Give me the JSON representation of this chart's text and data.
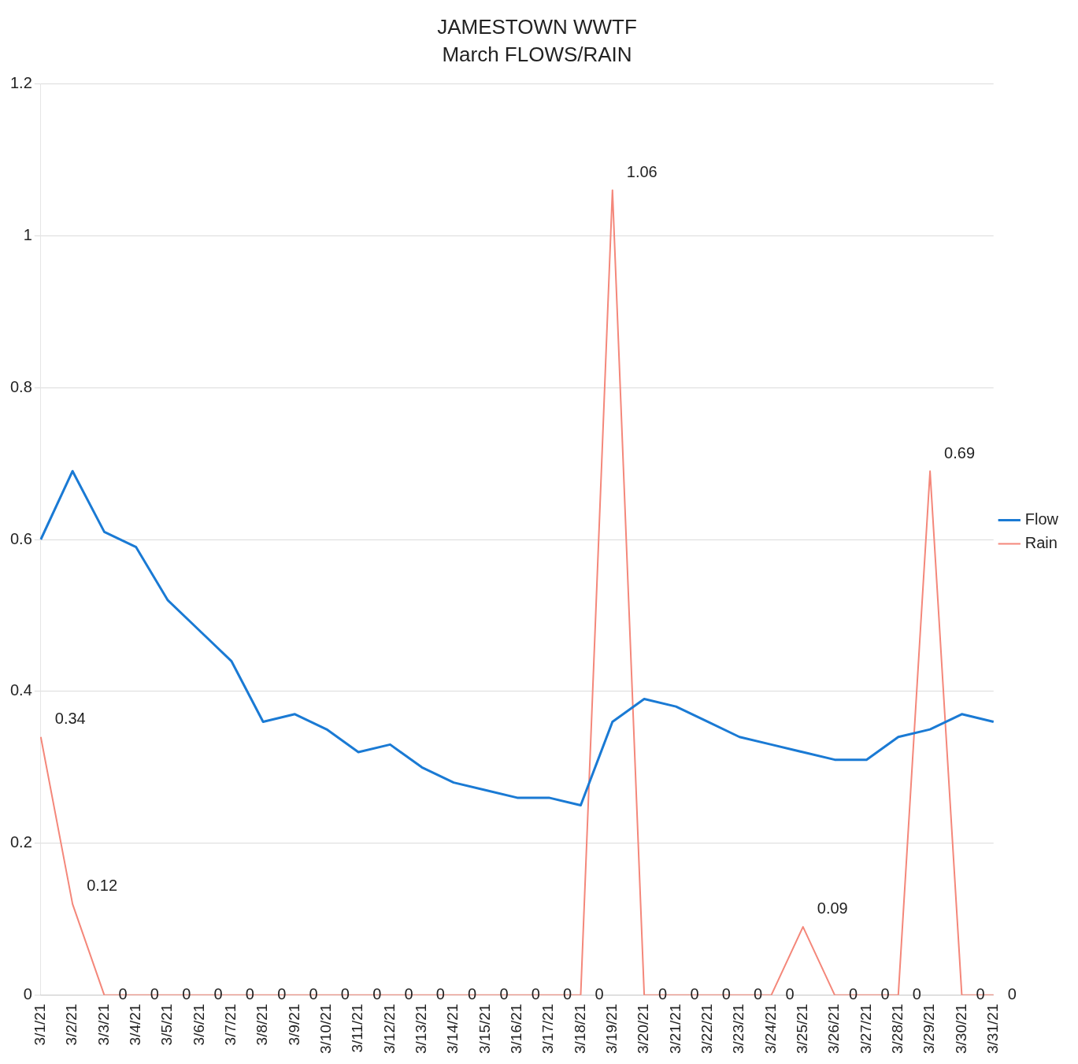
{
  "chart_data": {
    "type": "line",
    "title": "JAMESTOWN WWTF",
    "subtitle": "March FLOWS/RAIN",
    "categories": [
      "3/1/21",
      "3/2/21",
      "3/3/21",
      "3/4/21",
      "3/5/21",
      "3/6/21",
      "3/7/21",
      "3/8/21",
      "3/9/21",
      "3/10/21",
      "3/11/21",
      "3/12/21",
      "3/13/21",
      "3/14/21",
      "3/15/21",
      "3/16/21",
      "3/17/21",
      "3/18/21",
      "3/19/21",
      "3/20/21",
      "3/21/21",
      "3/22/21",
      "3/23/21",
      "3/24/21",
      "3/25/21",
      "3/26/21",
      "3/27/21",
      "3/28/21",
      "3/29/21",
      "3/30/21",
      "3/31/21"
    ],
    "series": [
      {
        "name": "Flow",
        "color": "#1a7ad4",
        "values": [
          0.6,
          0.69,
          0.61,
          0.59,
          0.52,
          0.48,
          0.44,
          0.36,
          0.37,
          0.35,
          0.32,
          0.33,
          0.3,
          0.28,
          0.27,
          0.26,
          0.26,
          0.25,
          0.36,
          0.39,
          0.38,
          0.36,
          0.34,
          0.33,
          0.32,
          0.31,
          0.31,
          0.34,
          0.35,
          0.37,
          0.36
        ]
      },
      {
        "name": "Rain",
        "color": "#f4877a",
        "values": [
          0.34,
          0.12,
          0,
          0,
          0,
          0,
          0,
          0,
          0,
          0,
          0,
          0,
          0,
          0,
          0,
          0,
          0,
          0,
          1.06,
          0,
          0,
          0,
          0,
          0,
          0.09,
          0,
          0,
          0,
          0.69,
          0,
          0
        ],
        "value_labels": [
          "0.34",
          "0.12",
          "0",
          "0",
          "0",
          "0",
          "0",
          "0",
          "0",
          "0",
          "0",
          "0",
          "0",
          "0",
          "0",
          "0",
          "0",
          "0",
          "1.06",
          "0",
          "0",
          "0",
          "0",
          "0",
          "0.09",
          "0",
          "0",
          "0",
          "0.69",
          "0",
          "0"
        ]
      }
    ],
    "ylim": [
      0,
      1.2
    ],
    "yticks": [
      0,
      0.2,
      0.4,
      0.6,
      0.8,
      1,
      1.2
    ],
    "grid": "y",
    "legend": "right",
    "marker": "none",
    "line_style": "solid"
  }
}
